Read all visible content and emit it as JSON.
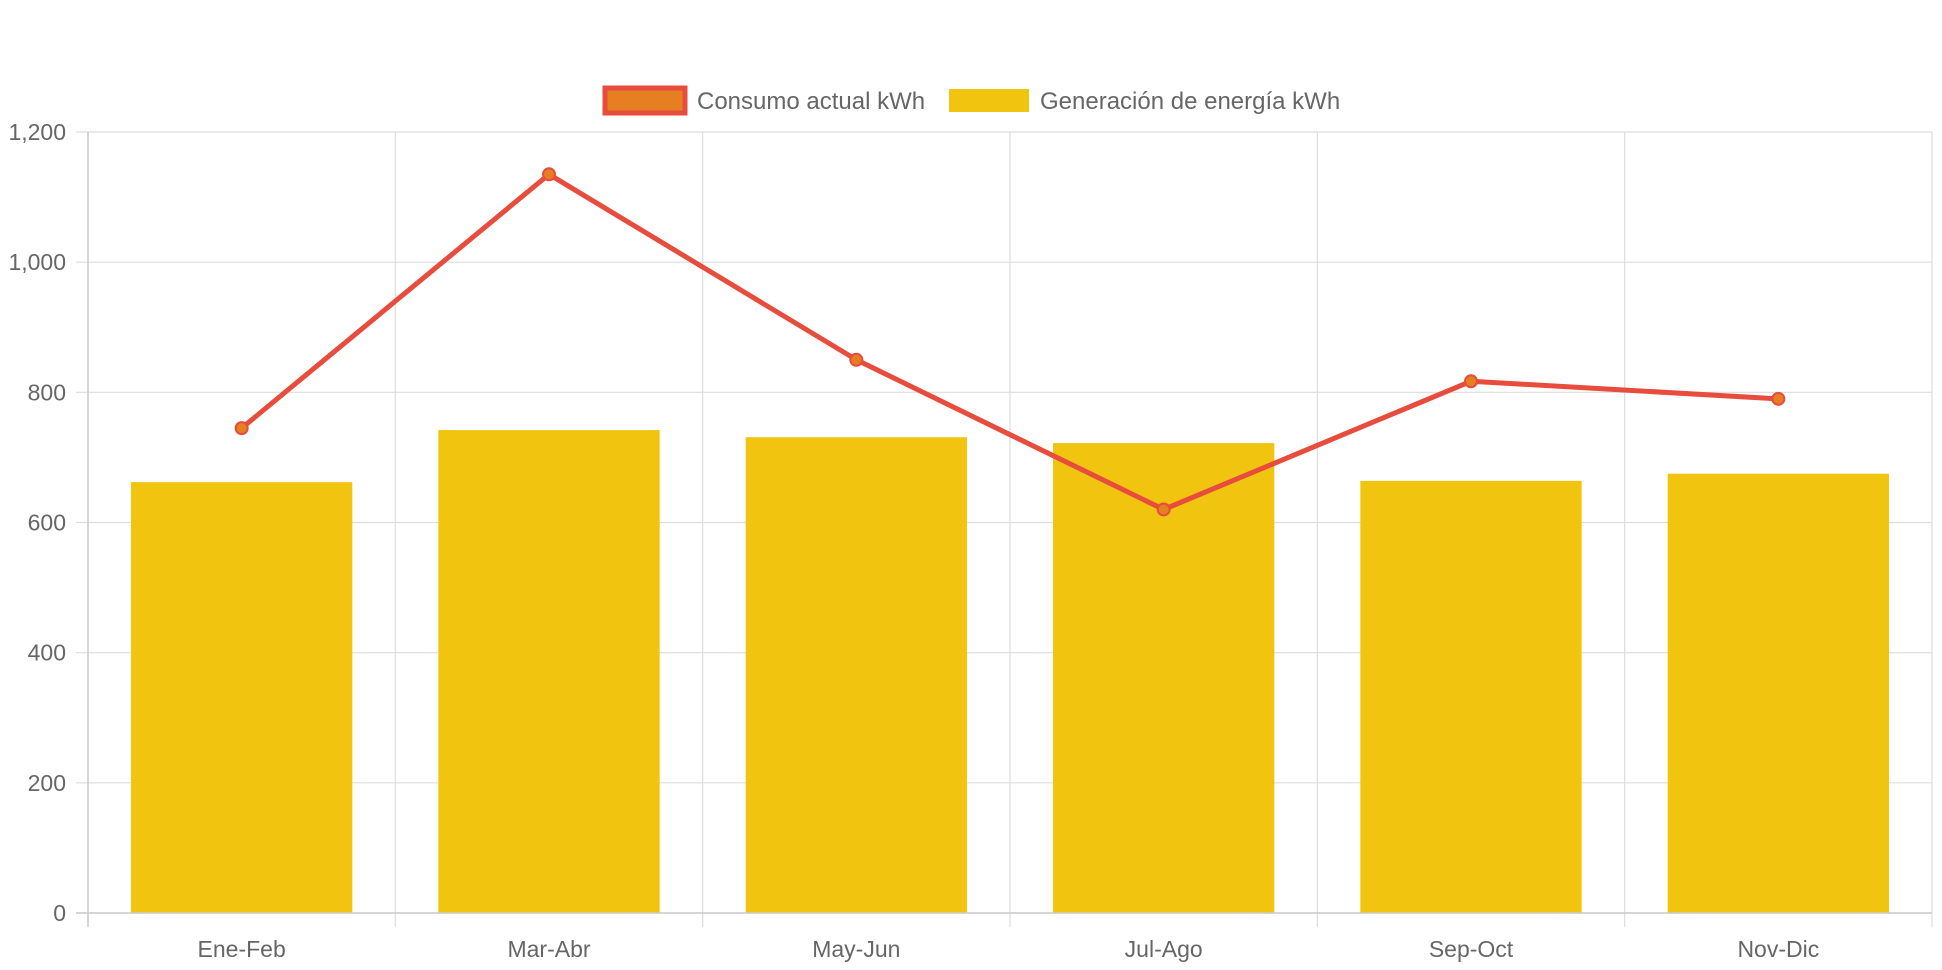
{
  "chart_data": {
    "type": "bar",
    "categories": [
      "Ene-Feb",
      "Mar-Abr",
      "May-Jun",
      "Jul-Ago",
      "Sep-Oct",
      "Nov-Dic"
    ],
    "series": [
      {
        "name": "Consumo actual kWh",
        "type": "line",
        "values": [
          745,
          1135,
          850,
          620,
          817,
          790
        ],
        "color": "#e74c3c",
        "point_color": "#e67e22"
      },
      {
        "name": "Generación de energía kWh",
        "type": "bar",
        "values": [
          662,
          742,
          731,
          722,
          664,
          675
        ],
        "color": "#f1c40f"
      }
    ],
    "title": "",
    "xlabel": "",
    "ylabel": "",
    "ylim": [
      0,
      1200
    ],
    "yticks": [
      "0",
      "200",
      "400",
      "600",
      "800",
      "1,000",
      "1,200"
    ],
    "grid": true,
    "legend": "top-center"
  }
}
